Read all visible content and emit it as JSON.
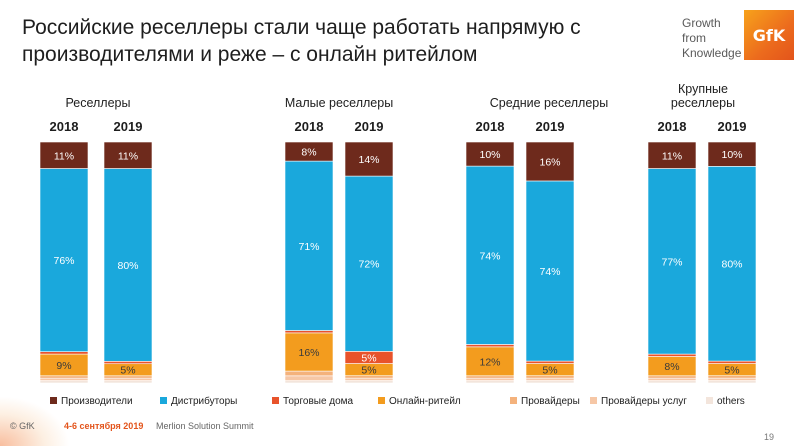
{
  "slide": {
    "title": "Российские реселлеры стали чаще работать напрямую с производителями и реже – с онлайн ритейлом",
    "logo_words": [
      "Growth",
      "from",
      "Knowledge"
    ],
    "logo_mark": "GfK",
    "footer_copyright": "© GfK",
    "footer_date": "4-6 сентября 2019",
    "footer_event": "Merlion Solution Summit",
    "page_number": "19"
  },
  "chart_data": {
    "type": "bar",
    "stacked": true,
    "normalized_to": 100,
    "groups": [
      {
        "label": "Реселлеры",
        "years": [
          "2018",
          "2019"
        ]
      },
      {
        "label": "Малые реселлеры",
        "years": [
          "2018",
          "2019"
        ]
      },
      {
        "label": "Средние реселлеры",
        "years": [
          "2018",
          "2019"
        ]
      },
      {
        "label": "Крупные реселлеры",
        "years": [
          "2018",
          "2019"
        ]
      }
    ],
    "series": [
      {
        "name": "others",
        "color": "#f3e5dc",
        "values": [
          1,
          1,
          1,
          1,
          1,
          1,
          1,
          1
        ],
        "labels": [
          "",
          "",
          "",
          "",
          "",
          "",
          "",
          ""
        ]
      },
      {
        "name": "Провайдеры услуг",
        "color": "#f6c7a6",
        "values": [
          1,
          1,
          2,
          1,
          1,
          1,
          1,
          1
        ],
        "labels": [
          "",
          "",
          "",
          "",
          "",
          "",
          "",
          ""
        ]
      },
      {
        "name": "Провайдеры",
        "color": "#f4b27c",
        "values": [
          1,
          1,
          2,
          1,
          1,
          1,
          1,
          1
        ],
        "labels": [
          "",
          "",
          "",
          "",
          "",
          "",
          "",
          ""
        ]
      },
      {
        "name": "Онлайн-ритейл",
        "color": "#f39c1e",
        "values": [
          9,
          5,
          16,
          5,
          12,
          5,
          8,
          5
        ],
        "labels": [
          "9%",
          "5%",
          "16%",
          "5%",
          "12%",
          "5%",
          "8%",
          "5%"
        ]
      },
      {
        "name": "Торговые дома",
        "color": "#e8532b",
        "values": [
          1,
          1,
          1,
          5,
          1,
          1,
          1,
          1
        ],
        "labels": [
          "",
          "",
          "",
          "5%",
          "",
          "",
          "",
          ""
        ]
      },
      {
        "name": "Дистрибуторы",
        "color": "#1aa8dc",
        "values": [
          76,
          80,
          71,
          72,
          74,
          74,
          77,
          80
        ],
        "labels": [
          "76%",
          "80%",
          "71%",
          "72%",
          "74%",
          "74%",
          "77%",
          "80%"
        ]
      },
      {
        "name": "Производители",
        "color": "#6e2a1c",
        "values": [
          11,
          11,
          8,
          14,
          10,
          16,
          11,
          10
        ],
        "labels": [
          "11%",
          "11%",
          "8%",
          "14%",
          "10%",
          "16%",
          "11%",
          "10%"
        ]
      }
    ],
    "legend": {
      "position": "bottom",
      "order": [
        "Производители",
        "Дистрибуторы",
        "Торговые дома",
        "Онлайн-ритейл",
        "Провайдеры",
        "Провайдеры услуг",
        "others"
      ]
    },
    "label_colors": {
      "dark": "#ffffff",
      "mid": "#ffffff",
      "light": "#3a3a3a"
    }
  }
}
